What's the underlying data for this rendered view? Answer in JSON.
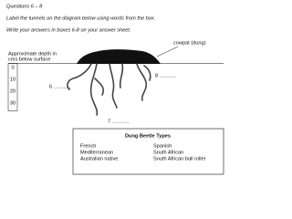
{
  "header": {
    "title": "Questions 6 – 8",
    "instruction": "Label the tunnels on the diagram below using words from the box.",
    "answer_note": "Write your answers in boxes 6-8 on your answer sheet."
  },
  "diagram": {
    "dung_label": "cowpat (dung)",
    "depth_label": [
      "Approximate depth in",
      "cms below surface"
    ],
    "depths": [
      "0",
      "10",
      "20",
      "30"
    ],
    "blanks": [
      "6 ............",
      "8 ............",
      "7 ............"
    ]
  },
  "box": {
    "title": "Dung Beetle Types",
    "columns": [
      [
        "French",
        "Mediterranean",
        "Australian native"
      ],
      [
        "Spanish",
        "South African",
        "South African ball roller"
      ]
    ]
  }
}
